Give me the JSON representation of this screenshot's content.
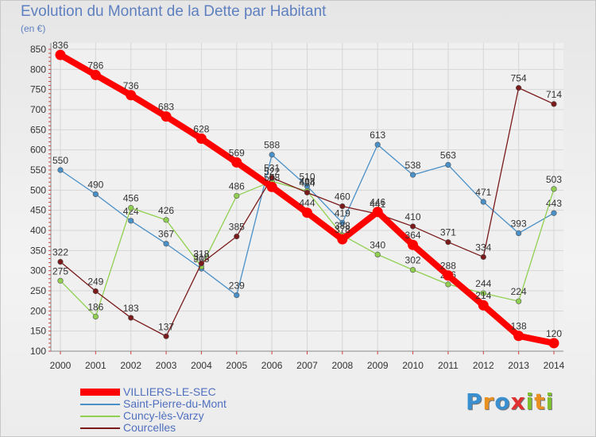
{
  "chart_data": {
    "type": "line",
    "title": "Evolution du Montant de la Dette par Habitant",
    "ylabel": "(en €)",
    "xlabel": "",
    "x": [
      "2000",
      "2001",
      "2002",
      "2003",
      "2004",
      "2005",
      "2006",
      "2007",
      "2008",
      "2009",
      "2010",
      "2011",
      "2012",
      "2013",
      "2014"
    ],
    "ylim": [
      100,
      850
    ],
    "yticks": [
      "100",
      "150",
      "200",
      "250",
      "300",
      "350",
      "400",
      "450",
      "500",
      "550",
      "600",
      "650",
      "700",
      "750",
      "800",
      "850"
    ],
    "series": [
      {
        "name": "Saint-Pierre-du-Mont",
        "color": "#4a90c8",
        "values": [
          550,
          490,
          424,
          367,
          305,
          239,
          588,
          510,
          419,
          613,
          538,
          563,
          471,
          393,
          443
        ]
      },
      {
        "name": "Cuncy-lès-Varzy",
        "color": "#90d050",
        "values": [
          275,
          186,
          456,
          426,
          310,
          486,
          522,
          498,
          388,
          340,
          302,
          266,
          244,
          224,
          503
        ]
      },
      {
        "name": "Courcelles",
        "color": "#7a1a1a",
        "values": [
          322,
          249,
          183,
          137,
          318,
          385,
          531,
          494,
          460,
          441,
          410,
          371,
          334,
          754,
          714
        ]
      },
      {
        "name": "VILLIERS-LE-SEC",
        "color": "#ff0000",
        "values": [
          836,
          786,
          736,
          683,
          628,
          569,
          508,
          444,
          378,
          446,
          364,
          288,
          214,
          138,
          120
        ]
      }
    ],
    "legend_order": [
      3,
      0,
      1,
      2
    ],
    "legend_position": "bottom-left"
  },
  "logo": {
    "letters": [
      "P",
      "r",
      "o",
      "x",
      "i",
      "t",
      "i"
    ],
    "colors": [
      "#3a8fd0",
      "#e89020",
      "#3a8fd0",
      "#e03030",
      "#80c030",
      "#e89020",
      "#80c030"
    ]
  }
}
